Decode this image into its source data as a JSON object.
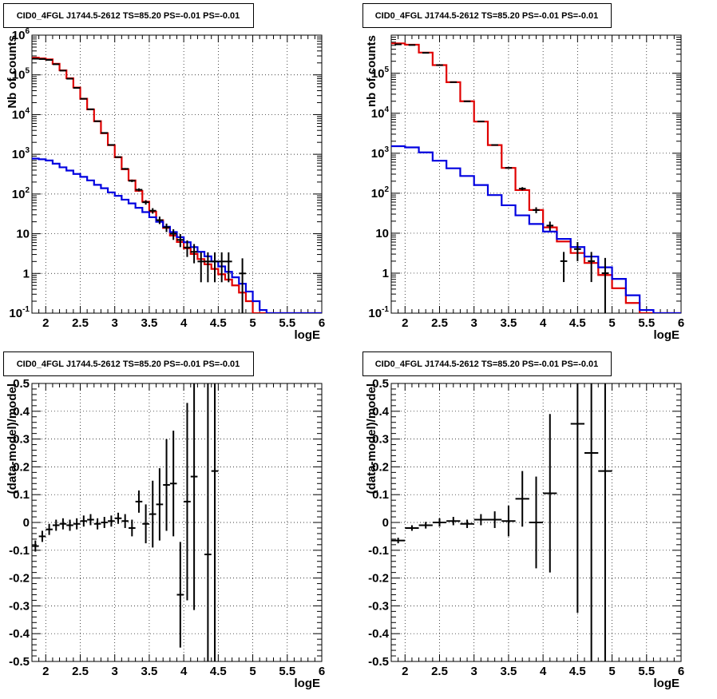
{
  "canvas": {
    "background": "#ffffff"
  },
  "colors": {
    "data": "#000000",
    "total_model": "#e00000",
    "source_model": "#0000e0"
  },
  "chart_data": [
    {
      "type": "line",
      "title": "CID0_4FGL J1744.5-2612 TS=85.20 PS=-0.01 PS=-0.01",
      "xlabel": "logE",
      "ylabel": "Nb of counts",
      "xlim": [
        1.8,
        6.0
      ],
      "ylim": [
        0.1,
        1000000
      ],
      "log_y": true,
      "grid": true,
      "x_ticks": [
        "2",
        "2.5",
        "3",
        "3.5",
        "4",
        "4.5",
        "5",
        "5.5",
        "6"
      ],
      "y_ticks": [
        {
          "base": "10",
          "exp": "-1"
        },
        {
          "base": "1",
          "exp": ""
        },
        {
          "base": "10",
          "exp": ""
        },
        {
          "base": "10",
          "exp": "2"
        },
        {
          "base": "10",
          "exp": "3"
        },
        {
          "base": "10",
          "exp": "4"
        },
        {
          "base": "10",
          "exp": "5"
        },
        {
          "base": "10",
          "exp": "6"
        }
      ],
      "bin_edges": [
        1.8,
        1.9,
        2.0,
        2.1,
        2.2,
        2.3,
        2.4,
        2.5,
        2.6,
        2.7,
        2.8,
        2.9,
        3.0,
        3.1,
        3.2,
        3.3,
        3.4,
        3.5,
        3.6,
        3.7,
        3.8,
        3.9,
        4.0,
        4.1,
        4.2,
        4.3,
        4.4,
        4.5,
        4.6,
        4.7,
        4.8,
        4.9,
        5.0,
        5.1,
        5.2,
        5.3,
        5.4,
        5.5,
        5.6,
        5.7,
        5.8,
        5.9,
        6.0
      ],
      "series": [
        {
          "role": "total_model",
          "style": "step",
          "values": [
            270000,
            260000,
            245000,
            190000,
            130000,
            82000,
            48000,
            25000,
            13500,
            6800,
            3400,
            1700,
            840,
            420,
            220,
            120,
            64,
            36,
            22,
            14,
            9,
            6.2,
            4.3,
            3.1,
            2.3,
            1.7,
            1.3,
            0.95,
            0.7,
            0.5,
            0.33,
            0.2,
            0.1,
            0.1,
            0.1,
            0.1,
            0.1,
            0.1,
            0.1,
            0.1,
            0.1,
            0.1
          ]
        },
        {
          "role": "source_model",
          "style": "step",
          "values": [
            780,
            750,
            700,
            580,
            470,
            390,
            320,
            270,
            220,
            170,
            140,
            110,
            90,
            72,
            58,
            45,
            35,
            26,
            20,
            15,
            11,
            8.2,
            6.1,
            4.6,
            3.5,
            2.7,
            2.0,
            1.5,
            1.1,
            0.8,
            0.55,
            0.35,
            0.2,
            0.12,
            0.1,
            0.1,
            0.1,
            0.1,
            0.1,
            0.1,
            0.1,
            0.1
          ]
        },
        {
          "role": "data",
          "style": "errorbar",
          "points": [
            {
              "x": 1.85,
              "y": 255000,
              "lo": 254000,
              "hi": 256000
            },
            {
              "x": 1.95,
              "y": 250000,
              "lo": 249000,
              "hi": 251000
            },
            {
              "x": 2.05,
              "y": 238000,
              "lo": 237000,
              "hi": 239000
            },
            {
              "x": 2.15,
              "y": 185000,
              "lo": 184000,
              "hi": 186000
            },
            {
              "x": 2.25,
              "y": 128000,
              "lo": 127500,
              "hi": 128500
            },
            {
              "x": 2.35,
              "y": 80000,
              "lo": 79700,
              "hi": 80300
            },
            {
              "x": 2.45,
              "y": 47000,
              "lo": 46800,
              "hi": 47200
            },
            {
              "x": 2.55,
              "y": 25000,
              "lo": 24850,
              "hi": 25150
            },
            {
              "x": 2.65,
              "y": 13600,
              "lo": 13480,
              "hi": 13720
            },
            {
              "x": 2.75,
              "y": 6800,
              "lo": 6720,
              "hi": 6880
            },
            {
              "x": 2.85,
              "y": 3450,
              "lo": 3390,
              "hi": 3510
            },
            {
              "x": 2.95,
              "y": 1720,
              "lo": 1680,
              "hi": 1760
            },
            {
              "x": 3.05,
              "y": 850,
              "lo": 820,
              "hi": 880
            },
            {
              "x": 3.15,
              "y": 430,
              "lo": 410,
              "hi": 450
            },
            {
              "x": 3.25,
              "y": 215,
              "lo": 200,
              "hi": 230
            },
            {
              "x": 3.35,
              "y": 128,
              "lo": 117,
              "hi": 139
            },
            {
              "x": 3.45,
              "y": 62,
              "lo": 54,
              "hi": 70
            },
            {
              "x": 3.55,
              "y": 38,
              "lo": 32,
              "hi": 44
            },
            {
              "x": 3.65,
              "y": 22,
              "lo": 17.5,
              "hi": 27
            },
            {
              "x": 3.75,
              "y": 14.5,
              "lo": 11,
              "hi": 18
            },
            {
              "x": 3.85,
              "y": 10,
              "lo": 7,
              "hi": 13
            },
            {
              "x": 3.95,
              "y": 7,
              "lo": 4.6,
              "hi": 9.8
            },
            {
              "x": 4.05,
              "y": 4.5,
              "lo": 2.6,
              "hi": 6.8
            },
            {
              "x": 4.15,
              "y": 3.5,
              "lo": 1.8,
              "hi": 5.5
            },
            {
              "x": 4.25,
              "y": 2.0,
              "lo": 0.6,
              "hi": 3.4
            },
            {
              "x": 4.35,
              "y": 2.0,
              "lo": 0.6,
              "hi": 3.4
            },
            {
              "x": 4.45,
              "y": 2.0,
              "lo": 0.6,
              "hi": 3.4
            },
            {
              "x": 4.55,
              "y": 2.0,
              "lo": 0.6,
              "hi": 3.4
            },
            {
              "x": 4.65,
              "y": 2.0,
              "lo": 0.6,
              "hi": 3.4
            },
            {
              "x": 4.85,
              "y": 1.0,
              "lo": 0.1,
              "hi": 2.4
            }
          ]
        }
      ]
    },
    {
      "type": "line",
      "title": "CID0_4FGL J1744.5-2612 TS=85.20 PS=-0.01 PS=-0.01",
      "xlabel": "logE",
      "ylabel": "nb of counts",
      "xlim": [
        1.8,
        6.0
      ],
      "ylim": [
        0.1,
        900000
      ],
      "log_y": true,
      "grid": true,
      "x_ticks": [
        "2",
        "2.5",
        "3",
        "3.5",
        "4",
        "4.5",
        "5",
        "5.5",
        "6"
      ],
      "y_ticks": [
        {
          "base": "10",
          "exp": "-1"
        },
        {
          "base": "1",
          "exp": ""
        },
        {
          "base": "10",
          "exp": ""
        },
        {
          "base": "10",
          "exp": "2"
        },
        {
          "base": "10",
          "exp": "3"
        },
        {
          "base": "10",
          "exp": "4"
        },
        {
          "base": "10",
          "exp": "5"
        }
      ],
      "bin_edges": [
        1.8,
        2.0,
        2.2,
        2.4,
        2.6,
        2.8,
        3.0,
        3.2,
        3.4,
        3.6,
        3.8,
        4.0,
        4.2,
        4.4,
        4.6,
        4.8,
        5.0,
        5.2,
        5.4,
        5.6,
        5.8,
        6.0
      ],
      "series": [
        {
          "role": "total_model",
          "style": "step",
          "values": [
            560000,
            520000,
            330000,
            160000,
            60000,
            20000,
            6200,
            1600,
            430,
            120,
            38,
            14,
            6.2,
            3.2,
            1.8,
            0.9,
            0.42,
            0.18,
            0.1,
            0.1,
            0.1
          ]
        },
        {
          "role": "source_model",
          "style": "step",
          "values": [
            1500,
            1400,
            1050,
            650,
            420,
            270,
            160,
            90,
            50,
            28,
            17,
            11,
            7.2,
            4.5,
            2.6,
            1.4,
            0.72,
            0.28,
            0.12,
            0.1,
            0.1
          ]
        },
        {
          "role": "data",
          "style": "errorbar",
          "points": [
            {
              "x": 1.9,
              "y": 530000,
              "lo": 529000,
              "hi": 531000
            },
            {
              "x": 2.1,
              "y": 510000,
              "lo": 509000,
              "hi": 511000
            },
            {
              "x": 2.3,
              "y": 325000,
              "lo": 324400,
              "hi": 325600
            },
            {
              "x": 2.5,
              "y": 160000,
              "lo": 159600,
              "hi": 160400
            },
            {
              "x": 2.7,
              "y": 60000,
              "lo": 59750,
              "hi": 60250
            },
            {
              "x": 2.9,
              "y": 19900,
              "lo": 19750,
              "hi": 20050
            },
            {
              "x": 3.1,
              "y": 6250,
              "lo": 6170,
              "hi": 6330
            },
            {
              "x": 3.3,
              "y": 1610,
              "lo": 1570,
              "hi": 1650
            },
            {
              "x": 3.5,
              "y": 430,
              "lo": 410,
              "hi": 450
            },
            {
              "x": 3.7,
              "y": 130,
              "lo": 118,
              "hi": 142
            },
            {
              "x": 3.9,
              "y": 38,
              "lo": 31.5,
              "hi": 44.5
            },
            {
              "x": 4.1,
              "y": 15.5,
              "lo": 11.5,
              "hi": 19.5
            },
            {
              "x": 4.3,
              "y": 2.0,
              "lo": 0.6,
              "hi": 3.4
            },
            {
              "x": 4.5,
              "y": 4.0,
              "lo": 2.0,
              "hi": 6.0
            },
            {
              "x": 4.7,
              "y": 2.0,
              "lo": 0.6,
              "hi": 3.4
            },
            {
              "x": 4.9,
              "y": 1.0,
              "lo": 0.1,
              "hi": 2.4
            }
          ]
        }
      ]
    },
    {
      "type": "scatter",
      "title": "CID0_4FGL J1744.5-2612 TS=85.20 PS=-0.01 PS=-0.01",
      "xlabel": "logE",
      "ylabel": "(data-model)/model",
      "xlim": [
        1.8,
        6.0
      ],
      "ylim": [
        -0.5,
        0.5
      ],
      "log_y": false,
      "grid": true,
      "x_ticks": [
        "2",
        "2.5",
        "3",
        "3.5",
        "4",
        "4.5",
        "5",
        "5.5",
        "6"
      ],
      "y_ticks": [
        "-0.5",
        "-0.4",
        "-0.3",
        "-0.2",
        "-0.1",
        "0",
        "0.1",
        "0.2",
        "0.3",
        "0.4",
        "0.5"
      ],
      "series": [
        {
          "role": "data",
          "style": "errorbar",
          "xerr": 0.05,
          "points": [
            {
              "x": 1.85,
              "y": -0.085,
              "err": 0.02
            },
            {
              "x": 1.95,
              "y": -0.05,
              "err": 0.02
            },
            {
              "x": 2.05,
              "y": -0.025,
              "err": 0.02
            },
            {
              "x": 2.15,
              "y": -0.01,
              "err": 0.02
            },
            {
              "x": 2.25,
              "y": -0.005,
              "err": 0.02
            },
            {
              "x": 2.35,
              "y": -0.01,
              "err": 0.02
            },
            {
              "x": 2.45,
              "y": -0.005,
              "err": 0.02
            },
            {
              "x": 2.55,
              "y": 0.005,
              "err": 0.02
            },
            {
              "x": 2.65,
              "y": 0.01,
              "err": 0.02
            },
            {
              "x": 2.75,
              "y": -0.005,
              "err": 0.02
            },
            {
              "x": 2.85,
              "y": 0.0,
              "err": 0.02
            },
            {
              "x": 2.95,
              "y": 0.005,
              "err": 0.02
            },
            {
              "x": 3.05,
              "y": 0.015,
              "err": 0.02
            },
            {
              "x": 3.15,
              "y": 0.005,
              "err": 0.025
            },
            {
              "x": 3.25,
              "y": -0.02,
              "err": 0.03
            },
            {
              "x": 3.35,
              "y": 0.075,
              "err": 0.04
            },
            {
              "x": 3.45,
              "y": -0.005,
              "err": 0.07
            },
            {
              "x": 3.55,
              "y": 0.03,
              "err": 0.12
            },
            {
              "x": 3.65,
              "y": 0.065,
              "err": 0.13
            },
            {
              "x": 3.75,
              "y": 0.135,
              "err": 0.165
            },
            {
              "x": 3.85,
              "y": 0.14,
              "err": 0.19
            },
            {
              "x": 3.95,
              "y": -0.26,
              "err": 0.19
            },
            {
              "x": 4.05,
              "y": 0.075,
              "err": 0.355
            },
            {
              "x": 4.15,
              "y": 0.165,
              "err": 0.48
            },
            {
              "x": 4.35,
              "y": -0.115,
              "err": 0.8
            },
            {
              "x": 4.45,
              "y": 0.185,
              "err": 0.9
            }
          ]
        }
      ]
    },
    {
      "type": "scatter",
      "title": "CID0_4FGL J1744.5-2612 TS=85.20 PS=-0.01 PS=-0.01",
      "xlabel": "logE",
      "ylabel": "(data-model)/model",
      "xlim": [
        1.8,
        6.0
      ],
      "ylim": [
        -0.5,
        0.5
      ],
      "log_y": false,
      "grid": true,
      "x_ticks": [
        "2",
        "2.5",
        "3",
        "3.5",
        "4",
        "4.5",
        "5",
        "5.5",
        "6"
      ],
      "y_ticks": [
        "-0.5",
        "-0.4",
        "-0.3",
        "-0.2",
        "-0.1",
        "0",
        "0.1",
        "0.2",
        "0.3",
        "0.4",
        "0.5"
      ],
      "series": [
        {
          "role": "data",
          "style": "errorbar",
          "xerr": 0.1,
          "points": [
            {
              "x": 1.9,
              "y": -0.065,
              "err": 0.01
            },
            {
              "x": 2.1,
              "y": -0.02,
              "err": 0.01
            },
            {
              "x": 2.3,
              "y": -0.01,
              "err": 0.012
            },
            {
              "x": 2.5,
              "y": 0.0,
              "err": 0.015
            },
            {
              "x": 2.7,
              "y": 0.005,
              "err": 0.015
            },
            {
              "x": 2.9,
              "y": -0.005,
              "err": 0.015
            },
            {
              "x": 3.1,
              "y": 0.01,
              "err": 0.02
            },
            {
              "x": 3.3,
              "y": 0.01,
              "err": 0.03
            },
            {
              "x": 3.5,
              "y": 0.005,
              "err": 0.055
            },
            {
              "x": 3.7,
              "y": 0.085,
              "err": 0.1
            },
            {
              "x": 3.9,
              "y": 0.0,
              "err": 0.165
            },
            {
              "x": 4.1,
              "y": 0.105,
              "err": 0.285
            },
            {
              "x": 4.5,
              "y": 0.355,
              "err": 0.68
            },
            {
              "x": 4.7,
              "y": 0.25,
              "err": 0.9
            },
            {
              "x": 4.9,
              "y": 0.185,
              "err": 1.0
            }
          ]
        }
      ]
    }
  ]
}
